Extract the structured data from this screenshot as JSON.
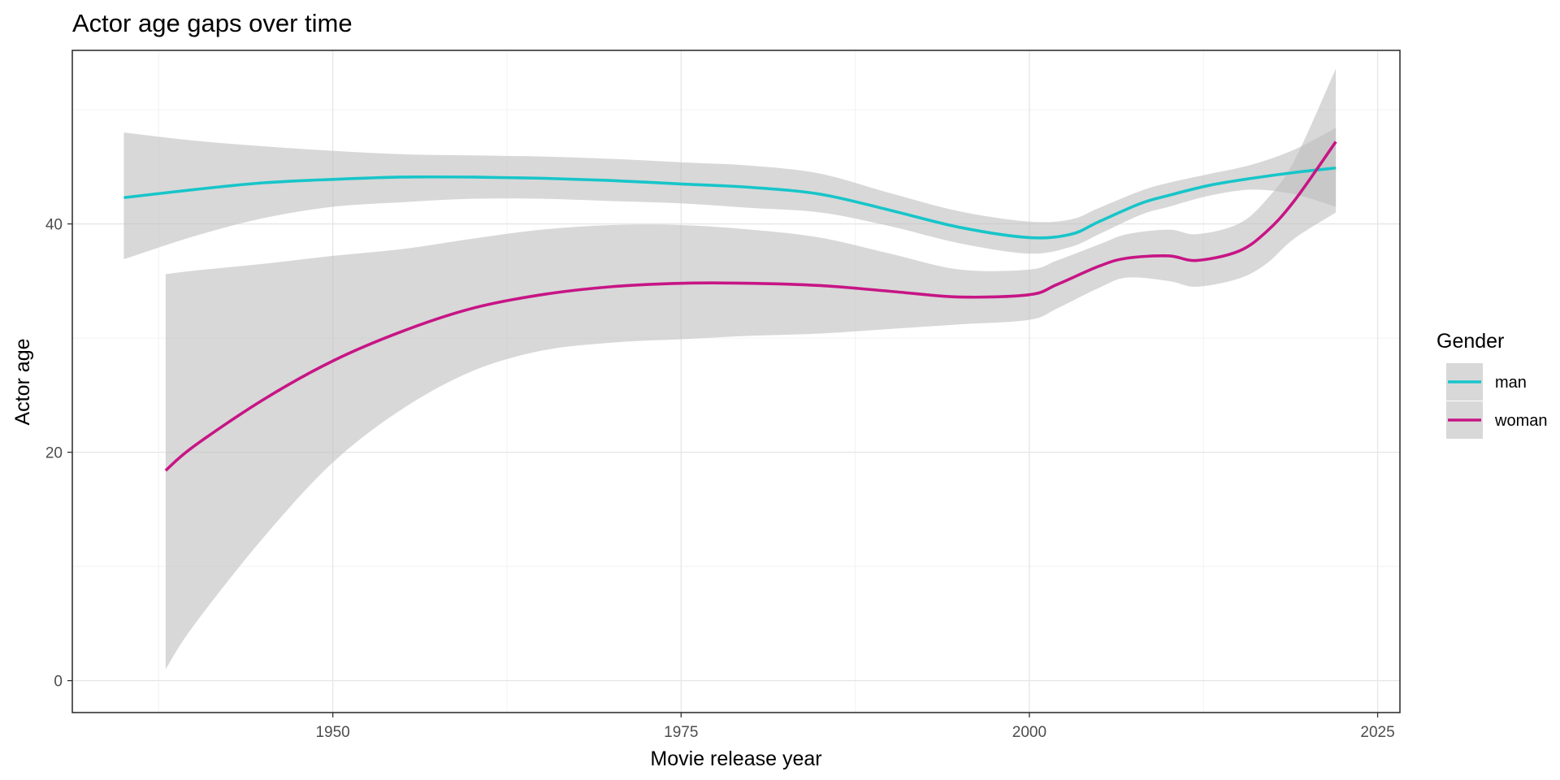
{
  "chart_data": {
    "type": "line",
    "title": "Actor age gaps over time",
    "xlabel": "Movie release year",
    "ylabel": "Actor age",
    "xlim": [
      1931.3,
      2026.6
    ],
    "ylim": [
      -2.8,
      55.2
    ],
    "x_ticks": [
      1950,
      1975,
      2000,
      2025
    ],
    "y_ticks": [
      0,
      20,
      40
    ],
    "x_tick_labels": [
      "1950",
      "1975",
      "2000",
      "2025"
    ],
    "y_tick_labels": [
      "0",
      "20",
      "40"
    ],
    "grid": true,
    "legend": {
      "title": "Gender",
      "placement": "right"
    },
    "ribbon_color": "#bebebe",
    "series": [
      {
        "name": "man",
        "color": "#17c5c9",
        "x": [
          1935,
          1940,
          1945,
          1950,
          1955,
          1960,
          1965,
          1970,
          1975,
          1980,
          1985,
          1990,
          1995,
          2000,
          2003,
          2005,
          2008,
          2010,
          2013,
          2016,
          2019,
          2022
        ],
        "y": [
          42.3,
          43.0,
          43.6,
          43.9,
          44.1,
          44.1,
          44.0,
          43.8,
          43.5,
          43.2,
          42.6,
          41.2,
          39.7,
          38.8,
          39.1,
          40.2,
          41.8,
          42.5,
          43.4,
          44.0,
          44.5,
          44.9
        ],
        "lower": [
          36.9,
          38.9,
          40.5,
          41.5,
          41.9,
          42.2,
          42.2,
          42.0,
          41.8,
          41.4,
          41.0,
          39.8,
          38.3,
          37.4,
          38.0,
          39.1,
          40.8,
          41.5,
          42.5,
          43.0,
          42.6,
          41.5
        ],
        "upper": [
          48.0,
          47.3,
          46.8,
          46.4,
          46.1,
          46.0,
          45.9,
          45.7,
          45.4,
          45.1,
          44.4,
          42.7,
          41.1,
          40.2,
          40.4,
          41.4,
          42.9,
          43.6,
          44.4,
          45.2,
          46.5,
          48.4
        ]
      },
      {
        "name": "woman",
        "color": "#c71585",
        "x": [
          1938,
          1940,
          1945,
          1950,
          1955,
          1960,
          1965,
          1970,
          1975,
          1980,
          1985,
          1990,
          1995,
          2000,
          2002,
          2005,
          2007,
          2010,
          2012,
          2015,
          2017,
          2019,
          2022
        ],
        "y": [
          18.4,
          20.5,
          24.6,
          28.0,
          30.6,
          32.6,
          33.8,
          34.5,
          34.8,
          34.8,
          34.6,
          34.1,
          33.6,
          33.8,
          34.7,
          36.3,
          37.0,
          37.2,
          36.8,
          37.6,
          39.3,
          42.0,
          47.2
        ],
        "lower": [
          1.0,
          4.8,
          12.5,
          19.1,
          23.8,
          27.1,
          28.9,
          29.6,
          29.9,
          30.2,
          30.4,
          30.8,
          31.2,
          31.6,
          32.6,
          34.4,
          35.3,
          35.0,
          34.5,
          35.2,
          36.5,
          38.7,
          41.0
        ],
        "upper": [
          35.6,
          35.9,
          36.5,
          37.2,
          37.8,
          38.7,
          39.5,
          39.9,
          39.9,
          39.5,
          38.8,
          37.4,
          36.0,
          36.0,
          36.8,
          38.2,
          39.1,
          39.5,
          39.1,
          40.0,
          42.1,
          45.5,
          53.6
        ]
      }
    ]
  }
}
